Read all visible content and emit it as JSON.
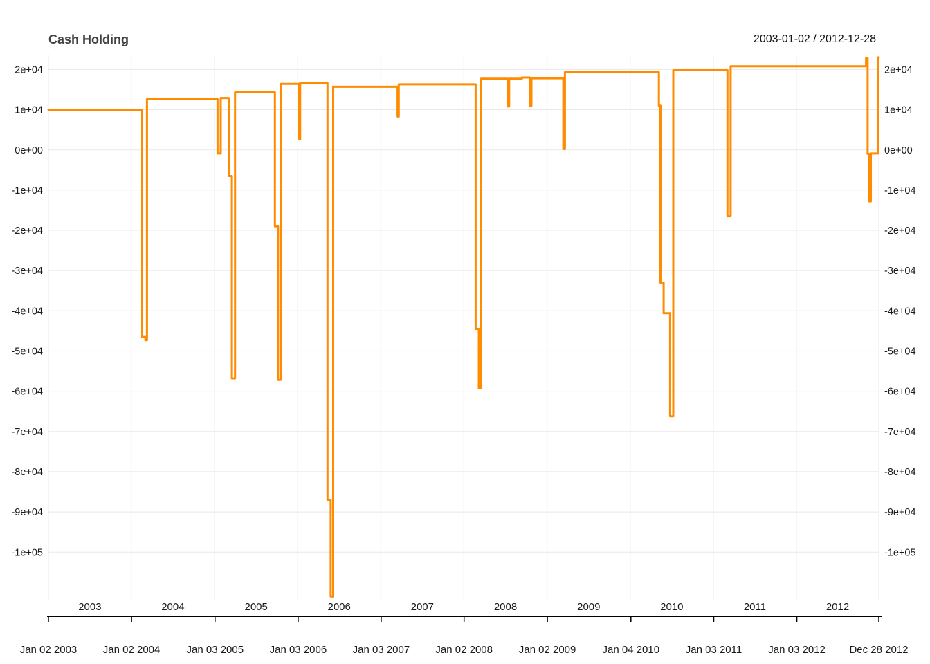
{
  "header": {
    "title": "Cash Holding",
    "date_range": "2003-01-02 / 2012-12-28"
  },
  "chart_data": {
    "type": "line",
    "subtype": "step-after",
    "series_name": "Cash Holding",
    "title": "Cash Holding",
    "xlabel": "",
    "ylabel": "",
    "line_color": "#FF8C00",
    "grid_color": "#E8E8E8",
    "axis_color": "#000000",
    "text_color": "#1a1a1a",
    "x_start": "2003-01-02",
    "x_end": "2012-12-28",
    "ylim": [
      -112000,
      23500
    ],
    "y_ticks": [
      {
        "value": 20000,
        "label": "2e+04"
      },
      {
        "value": 10000,
        "label": "1e+04"
      },
      {
        "value": 0,
        "label": "0e+00"
      },
      {
        "value": -10000,
        "label": "-1e+04"
      },
      {
        "value": -20000,
        "label": "-2e+04"
      },
      {
        "value": -30000,
        "label": "-3e+04"
      },
      {
        "value": -40000,
        "label": "-4e+04"
      },
      {
        "value": -50000,
        "label": "-5e+04"
      },
      {
        "value": -60000,
        "label": "-6e+04"
      },
      {
        "value": -70000,
        "label": "-7e+04"
      },
      {
        "value": -80000,
        "label": "-8e+04"
      },
      {
        "value": -90000,
        "label": "-9e+04"
      },
      {
        "value": -100000,
        "label": "-1e+05"
      }
    ],
    "year_labels": [
      "2003",
      "2004",
      "2005",
      "2006",
      "2007",
      "2008",
      "2009",
      "2010",
      "2011",
      "2012"
    ],
    "bottom_axis_labels": [
      "Jan 02 2003",
      "Jan 02 2004",
      "Jan 03 2005",
      "Jan 03 2006",
      "Jan 03 2007",
      "Jan 02 2008",
      "Jan 02 2009",
      "Jan 04 2010",
      "Jan 03 2011",
      "Jan 03 2012",
      "Dec 28 2012"
    ],
    "points": [
      [
        "2003-01-02",
        10000
      ],
      [
        "2004-02-18",
        -46500
      ],
      [
        "2004-03-03",
        -47300
      ],
      [
        "2004-03-10",
        12600
      ],
      [
        "2005-01-14",
        -900
      ],
      [
        "2005-01-28",
        12900
      ],
      [
        "2005-03-04",
        -6500
      ],
      [
        "2005-03-18",
        -56800
      ],
      [
        "2005-04-01",
        14300
      ],
      [
        "2005-09-23",
        -19000
      ],
      [
        "2005-10-07",
        -57200
      ],
      [
        "2005-10-18",
        16400
      ],
      [
        "2006-01-05",
        2700
      ],
      [
        "2006-01-12",
        16700
      ],
      [
        "2006-05-12",
        -87000
      ],
      [
        "2006-05-26",
        -111000
      ],
      [
        "2006-06-06",
        15700
      ],
      [
        "2007-03-16",
        8300
      ],
      [
        "2007-03-21",
        16300
      ],
      [
        "2008-02-22",
        -44500
      ],
      [
        "2008-03-07",
        -59200
      ],
      [
        "2008-03-17",
        17700
      ],
      [
        "2008-07-11",
        10800
      ],
      [
        "2008-07-18",
        17700
      ],
      [
        "2008-09-12",
        18000
      ],
      [
        "2008-10-17",
        11000
      ],
      [
        "2008-10-24",
        17800
      ],
      [
        "2009-03-13",
        200
      ],
      [
        "2009-03-20",
        19300
      ],
      [
        "2010-05-07",
        11000
      ],
      [
        "2010-05-14",
        -33000
      ],
      [
        "2010-05-28",
        -40600
      ],
      [
        "2010-06-25",
        -66200
      ],
      [
        "2010-07-09",
        19800
      ],
      [
        "2011-03-04",
        -16500
      ],
      [
        "2011-03-18",
        20800
      ],
      [
        "2012-11-02",
        22800
      ],
      [
        "2012-11-09",
        -1000
      ],
      [
        "2012-11-16",
        -12800
      ],
      [
        "2012-11-23",
        -900
      ],
      [
        "2012-12-26",
        23000
      ],
      [
        "2012-12-28",
        23000
      ]
    ]
  }
}
